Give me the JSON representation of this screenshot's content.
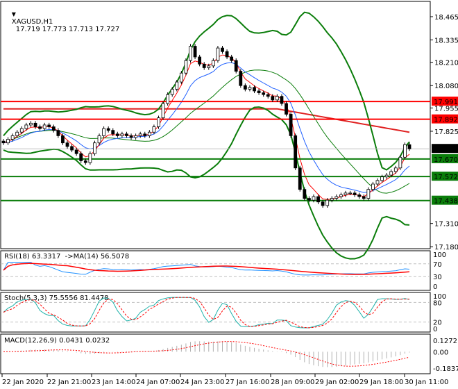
{
  "header": {
    "arrow_icon": "triangle-down-icon",
    "symbol": "XAGUSD,H1",
    "ohlc": "17.719 17.773 17.713 17.727"
  },
  "panes": {
    "rsi_label": "RSI(18) 63.3317  ->MA(14) 56.5078",
    "stoch_label": "Stoch(5,3,3) 75.5556 81.4478",
    "macd_label": "MACD(12,26,9) 0.0431 0.0232"
  },
  "colors": {
    "bull": "#000000",
    "bear": "#000000",
    "bands": "#0a7d0a",
    "ma_fast": "#ff0000",
    "ma_slow": "#1e5fff",
    "ma_long": "#e02020",
    "support": "#0a7d0a",
    "resistance": "#ff0000",
    "rsi": "#1e90ff",
    "stoch_main": "#20b2aa",
    "stoch_signal": "#ff0000",
    "macd_hist": "#b0b0b0",
    "macd_signal": "#ff0000"
  },
  "chart_data": {
    "type": "candlestick",
    "price_axis": {
      "ticks": [
        "18.465",
        "18.335",
        "18.210",
        "18.080",
        "17.955",
        "17.825",
        "17.310",
        "17.180"
      ],
      "range": [
        17.18,
        18.465
      ]
    },
    "current_price": "17.727",
    "resistance_levels": [
      "17.991",
      "17.892"
    ],
    "support_levels": [
      "17.670",
      "17.572",
      "17.438"
    ],
    "time_labels": [
      "22 Jan 2020",
      "22 Jan 21:00",
      "23 Jan 14:00",
      "24 Jan 07:00",
      "24 Jan 23:00",
      "27 Jan 16:00",
      "28 Jan 09:00",
      "29 Jan 02:00",
      "29 Jan 18:00",
      "30 Jan 11:00"
    ],
    "closes": [
      17.76,
      17.78,
      17.8,
      17.82,
      17.84,
      17.86,
      17.87,
      17.85,
      17.84,
      17.86,
      17.85,
      17.83,
      17.8,
      17.76,
      17.74,
      17.72,
      17.7,
      17.66,
      17.65,
      17.7,
      17.76,
      17.8,
      17.84,
      17.83,
      17.81,
      17.8,
      17.81,
      17.8,
      17.79,
      17.8,
      17.81,
      17.8,
      17.82,
      17.85,
      17.9,
      17.98,
      18.03,
      18.06,
      18.1,
      18.15,
      18.22,
      18.3,
      18.24,
      18.2,
      18.18,
      18.19,
      18.22,
      18.29,
      18.27,
      18.24,
      18.22,
      18.16,
      18.08,
      18.06,
      18.07,
      18.05,
      18.04,
      18.03,
      18.02,
      18.0,
      18.02,
      17.98,
      17.92,
      17.8,
      17.62,
      17.5,
      17.45,
      17.44,
      17.46,
      17.43,
      17.41,
      17.44,
      17.45,
      17.46,
      17.47,
      17.48,
      17.48,
      17.47,
      17.46,
      17.45,
      17.5,
      17.53,
      17.55,
      17.57,
      17.58,
      17.6,
      17.62,
      17.68,
      17.75,
      17.727
    ],
    "rsi": {
      "axis": [
        "100",
        "70",
        "30",
        "0"
      ],
      "levels": [
        70,
        30
      ]
    },
    "stoch": {
      "axis": [
        "100",
        "80",
        "20",
        "0"
      ],
      "levels": [
        80,
        20
      ]
    },
    "macd": {
      "axis": [
        "0.1272",
        "0.00",
        "-0.1837"
      ],
      "range": [
        -0.1837,
        0.1272
      ]
    }
  }
}
